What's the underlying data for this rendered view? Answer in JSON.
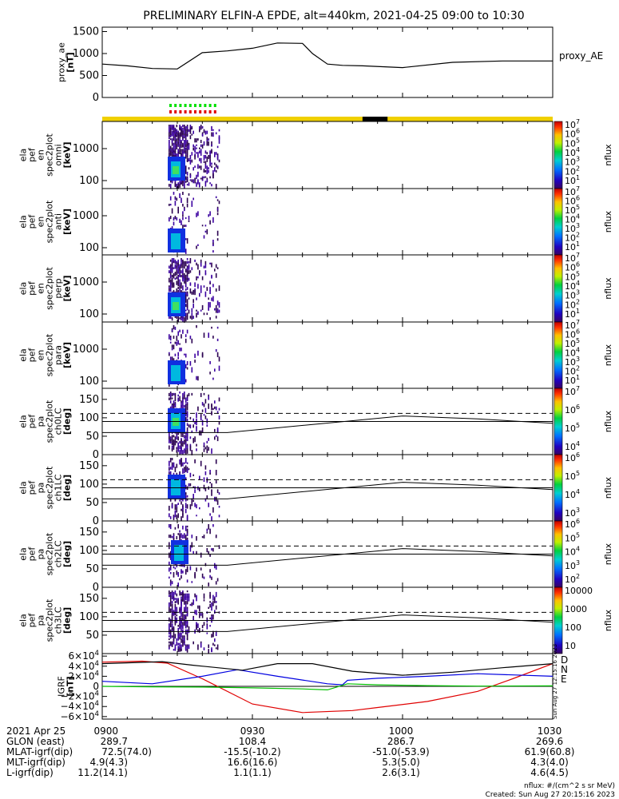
{
  "title": "PRELIMINARY ELFIN-A EPDE, alt=440km, 2021-04-25 09:00 to 10:30",
  "colors": {
    "proxy": "#000000",
    "attitude_bar": "#f0d000",
    "shadow_marker": "#000000",
    "science_mark_green": "#00e000",
    "science_mark_red": "#e00000",
    "grf_D": "#e00000",
    "grf_N": "#0000e0",
    "grf_E": "#00c000",
    "grf_total": "#000000"
  },
  "chart_data": [
    {
      "type": "line",
      "id": "proxy_ae",
      "ylabel": [
        "proxy_ae",
        "[nT]"
      ],
      "legend": "proxy_AE",
      "ylim": [
        0,
        1600
      ],
      "yticks": [
        "1500",
        "1000",
        "500",
        "0"
      ],
      "x_minutes": [
        0,
        5,
        10,
        15,
        20,
        25,
        30,
        35,
        40,
        42,
        45,
        48,
        52,
        60,
        70,
        80,
        90
      ],
      "values": [
        760,
        720,
        660,
        650,
        1020,
        1060,
        1120,
        1240,
        1230,
        1000,
        760,
        730,
        720,
        680,
        800,
        830,
        830
      ]
    },
    {
      "type": "heatmap",
      "id": "spec_omni",
      "ylabel": [
        "ela",
        "pef",
        "en",
        "spec2plot",
        "omni",
        "[keV]"
      ],
      "yticks": [
        "1000",
        "100"
      ],
      "colorbar_label": "nflux",
      "colorbar_ticks": [
        "10",
        "10",
        "10",
        "10",
        "10",
        "10",
        "10"
      ],
      "colorbar_exp": [
        "7",
        "6",
        "5",
        "4",
        "3",
        "2",
        "1"
      ]
    },
    {
      "type": "heatmap",
      "id": "spec_anti",
      "ylabel": [
        "ela",
        "pef",
        "en",
        "spec2plot",
        "anti",
        "[keV]"
      ],
      "yticks": [
        "1000",
        "100"
      ],
      "colorbar_label": "nflux",
      "colorbar_ticks": [
        "10",
        "10",
        "10",
        "10",
        "10",
        "10",
        "10"
      ],
      "colorbar_exp": [
        "7",
        "6",
        "5",
        "4",
        "3",
        "2",
        "1"
      ]
    },
    {
      "type": "heatmap",
      "id": "spec_perp",
      "ylabel": [
        "ela",
        "pef",
        "en",
        "spec2plot",
        "perp",
        "[keV]"
      ],
      "yticks": [
        "1000",
        "100"
      ],
      "colorbar_label": "nflux",
      "colorbar_ticks": [
        "10",
        "10",
        "10",
        "10",
        "10",
        "10",
        "10"
      ],
      "colorbar_exp": [
        "7",
        "6",
        "5",
        "4",
        "3",
        "2",
        "1"
      ]
    },
    {
      "type": "heatmap",
      "id": "spec_para",
      "ylabel": [
        "ela",
        "pef",
        "en",
        "spec2plot",
        "para",
        "[keV]"
      ],
      "yticks": [
        "1000",
        "100"
      ],
      "colorbar_label": "nflux",
      "colorbar_ticks": [
        "10",
        "10",
        "10",
        "10",
        "10",
        "10",
        "10"
      ],
      "colorbar_exp": [
        "7",
        "6",
        "5",
        "4",
        "3",
        "2",
        "1"
      ]
    },
    {
      "type": "heatmap",
      "id": "pa_ch0",
      "ylabel": [
        "ela",
        "pef",
        "pa",
        "spec2plot",
        "ch0LC",
        "[deg]"
      ],
      "yticks": [
        "150",
        "100",
        "50",
        "0"
      ],
      "colorbar_label": "nflux",
      "colorbar_ticks": [
        "10",
        "10",
        "10",
        "10"
      ],
      "colorbar_exp": [
        "7",
        "6",
        "5",
        "4"
      ]
    },
    {
      "type": "heatmap",
      "id": "pa_ch1",
      "ylabel": [
        "ela",
        "pef",
        "pa",
        "spec2plot",
        "ch1LC",
        "[deg]"
      ],
      "yticks": [
        "150",
        "100",
        "50",
        "0"
      ],
      "colorbar_label": "nflux",
      "colorbar_ticks": [
        "10",
        "10",
        "10",
        "10"
      ],
      "colorbar_exp": [
        "6",
        "5",
        "4",
        "3"
      ]
    },
    {
      "type": "heatmap",
      "id": "pa_ch2",
      "ylabel": [
        "ela",
        "pef",
        "pa",
        "spec2plot",
        "ch2LC",
        "[deg]"
      ],
      "yticks": [
        "150",
        "100",
        "50",
        "0"
      ],
      "colorbar_label": "nflux",
      "colorbar_ticks": [
        "10",
        "10",
        "10",
        "10",
        "10"
      ],
      "colorbar_exp": [
        "6",
        "5",
        "4",
        "3",
        "2"
      ]
    },
    {
      "type": "heatmap",
      "id": "pa_ch3",
      "ylabel": [
        "ela",
        "pef",
        "pa",
        "spec2plot",
        "ch3LC",
        "[deg]"
      ],
      "yticks": [
        "150",
        "100",
        "50"
      ],
      "colorbar_label": "nflux",
      "colorbar_ticks": [
        "10000",
        "1000",
        "100",
        "10"
      ]
    },
    {
      "type": "line",
      "id": "grf",
      "ylabel": [
        "IGRF",
        "[nT]"
      ],
      "ylim": [
        -65000,
        65000
      ],
      "yticks": [
        "6×10",
        "4×10",
        "2×10",
        "0",
        "−2×10",
        "−4×10",
        "−6×10"
      ],
      "ytick_exp": "4",
      "legend": [
        "D",
        "N",
        "E"
      ],
      "series": [
        {
          "name": "D",
          "x_minutes": [
            0,
            8,
            13,
            20,
            30,
            40,
            50,
            55,
            65,
            75,
            82,
            90
          ],
          "values": [
            48000,
            50000,
            46000,
            15000,
            -35000,
            -52000,
            -48000,
            -42000,
            -30000,
            -10000,
            15000,
            45000
          ]
        },
        {
          "name": "N",
          "x_minutes": [
            0,
            10,
            20,
            27,
            35,
            45,
            48,
            49,
            55,
            65,
            75,
            90
          ],
          "values": [
            10000,
            5000,
            20000,
            33000,
            20000,
            5000,
            3000,
            12000,
            16000,
            20000,
            25000,
            20000
          ]
        },
        {
          "name": "E",
          "x_minutes": [
            0,
            10,
            20,
            30,
            40,
            45,
            49,
            55,
            65,
            75,
            90
          ],
          "values": [
            0,
            -1000,
            -1500,
            -3000,
            -5000,
            -7000,
            5000,
            3000,
            1500,
            500,
            1000
          ]
        },
        {
          "name": "",
          "x_minutes": [
            0,
            12,
            18,
            28,
            35,
            42,
            50,
            60,
            70,
            80,
            90
          ],
          "values": [
            45000,
            49000,
            42000,
            32000,
            45000,
            45000,
            30000,
            22000,
            28000,
            37000,
            45000
          ]
        }
      ],
      "side_stamp": "Sun Aug 27 12:15:16 2023"
    }
  ],
  "shared_xaxis": {
    "tick_labels": [
      "0900",
      "0930",
      "1000",
      "1030"
    ],
    "tick_minutes": [
      0,
      30,
      60,
      90
    ]
  },
  "orbit_table": {
    "rows": [
      {
        "label": "2021 Apr 25",
        "values": [
          "0900",
          "0930",
          "1000",
          "1030"
        ]
      },
      {
        "label": "GLON (east)",
        "values": [
          "289.7",
          "108.4",
          "286.7",
          "269.6"
        ]
      },
      {
        "label": "MLAT-igrf(dip)",
        "values": [
          "72.5(74.0)",
          "-15.5(-10.2)",
          "-51.0(-53.9)",
          "61.9(60.8)"
        ]
      },
      {
        "label": "MLT-igrf(dip)",
        "values": [
          "4.9(4.3)",
          "16.6(16.6)",
          "5.3(5.0)",
          "4.3(4.0)"
        ]
      },
      {
        "label": "L-igrf(dip)",
        "values": [
          "11.2(14.1)",
          "1.1(1.1)",
          "2.6(3.1)",
          "4.6(4.5)"
        ]
      }
    ]
  },
  "footer": {
    "units": "nflux: #/(cm^2 s sr MeV)",
    "created": "Created: Sun Aug 27 20:15:16 2023"
  }
}
